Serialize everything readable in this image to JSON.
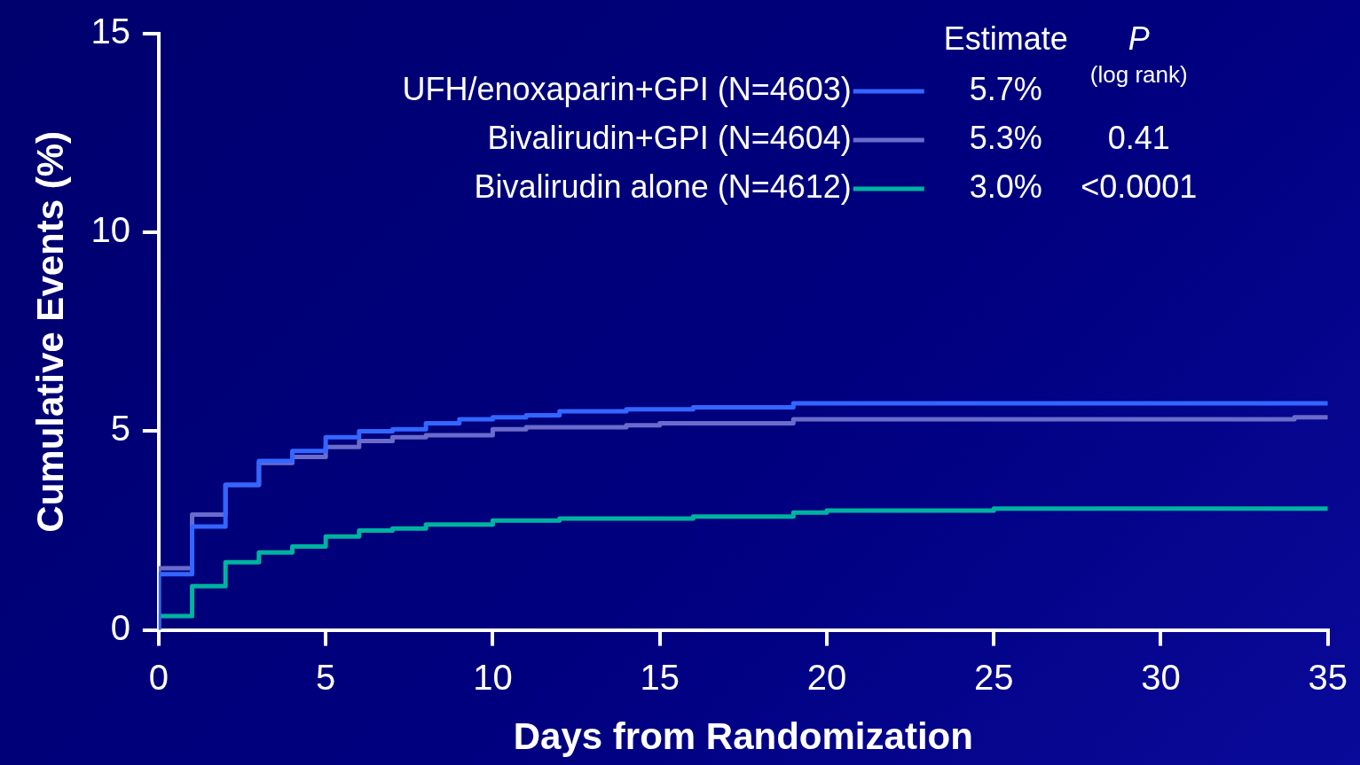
{
  "chart_data": {
    "type": "step",
    "xlabel": "Days from Randomization",
    "ylabel": "Cumulative Events (%)",
    "xlim": [
      0,
      35
    ],
    "xticks": [
      0,
      5,
      10,
      15,
      20,
      25,
      30,
      35
    ],
    "ylim": [
      0,
      15
    ],
    "yticks": [
      0,
      5,
      10,
      15
    ],
    "grid": false,
    "legend": "top",
    "legend_title": "Estimate",
    "marker": "none",
    "line_style": "solid",
    "series": [
      {
        "name": "UFH/enoxaparin+GPI (N=4603)",
        "color": "#3366ff",
        "x": [
          0,
          0,
          1,
          2,
          3,
          4,
          5,
          6,
          7,
          8,
          9,
          10,
          11,
          12,
          14,
          16,
          19,
          35
        ],
        "values": [
          0,
          1.4,
          2.6,
          3.65,
          4.25,
          4.5,
          4.85,
          5.0,
          5.05,
          5.2,
          5.3,
          5.35,
          5.4,
          5.5,
          5.55,
          5.6,
          5.7,
          5.7
        ]
      },
      {
        "name": "Bivalirudin+GPI (N=4604)",
        "color": "#6b6bcc",
        "x": [
          0,
          0,
          1,
          2,
          3,
          4,
          5,
          6,
          7,
          8,
          10,
          11,
          14,
          15,
          19,
          34,
          35
        ],
        "values": [
          0,
          1.55,
          2.9,
          3.65,
          4.2,
          4.35,
          4.6,
          4.75,
          4.85,
          4.9,
          5.05,
          5.1,
          5.15,
          5.2,
          5.3,
          5.35,
          5.35
        ]
      },
      {
        "name": "Bivalirudin alone (N=4612)",
        "color": "#00b3a0",
        "x": [
          0,
          0,
          1,
          2,
          3,
          4,
          5,
          6,
          7,
          8,
          10,
          12,
          16,
          19,
          20,
          25,
          35
        ],
        "values": [
          0,
          0.35,
          1.1,
          1.7,
          1.95,
          2.1,
          2.35,
          2.5,
          2.55,
          2.65,
          2.75,
          2.8,
          2.85,
          2.95,
          3.0,
          3.05,
          3.05
        ]
      }
    ],
    "annotations": [
      "5.7%",
      "5.3%",
      "3.0%",
      "P",
      "(log rank)",
      "0.41",
      "<0.0001"
    ]
  }
}
